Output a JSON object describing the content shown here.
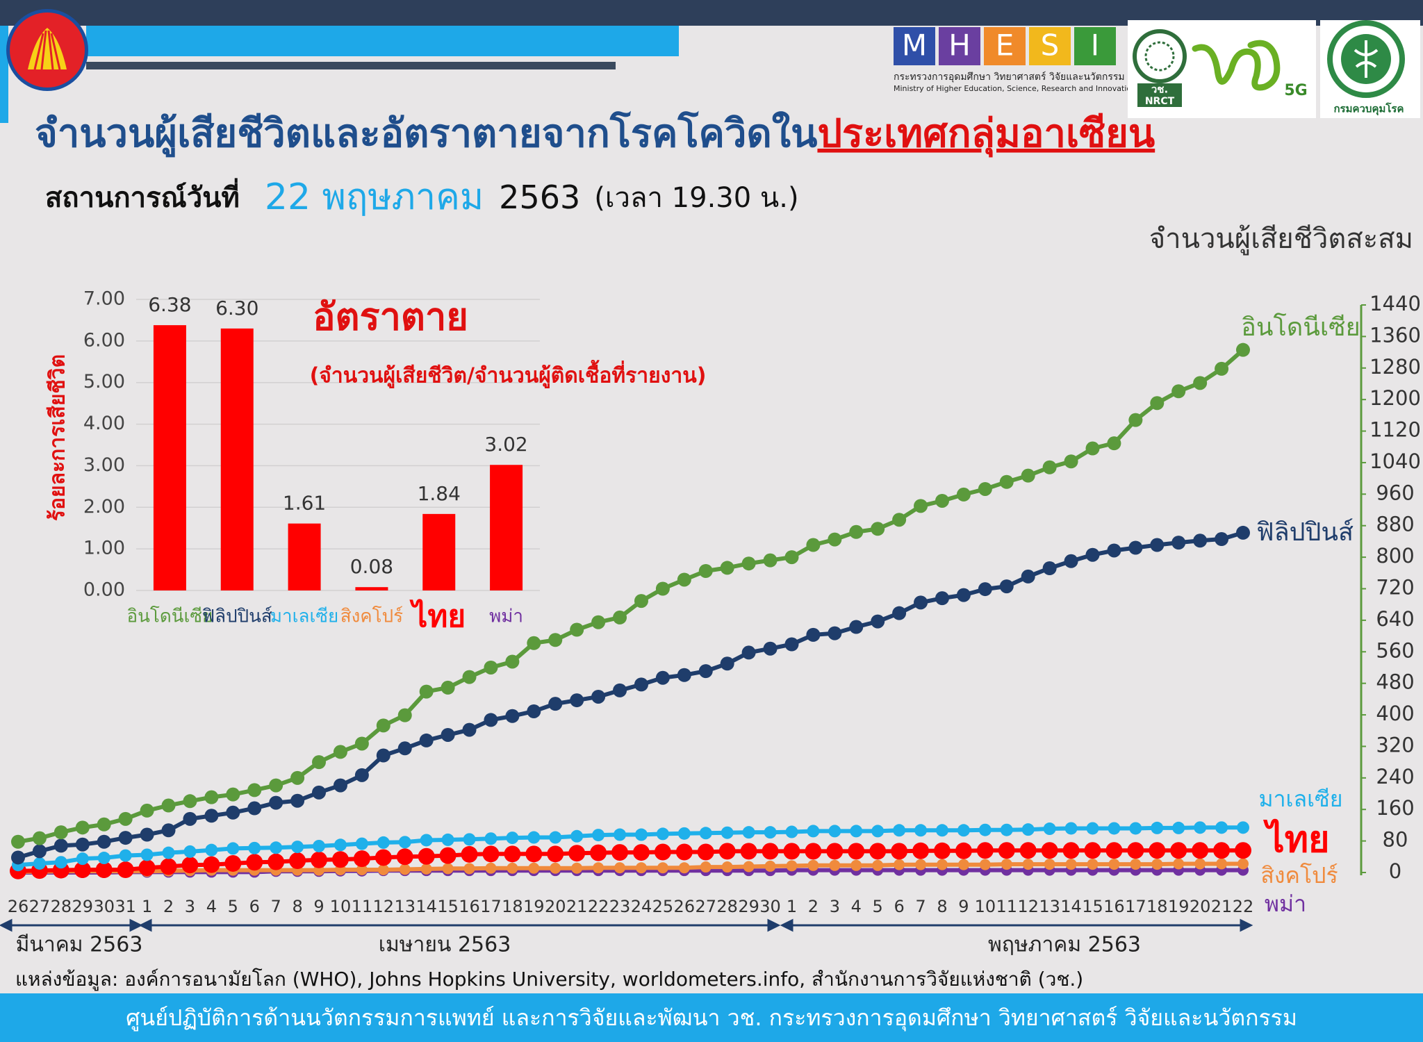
{
  "header": {
    "title_part1": "จำนวนผู้เสียชีวิตและอัตราตายจากโรคโควิดใน",
    "title_part2": "ประเทศกลุ่มอาเซียน",
    "situation_label": "สถานการณ์วันที่",
    "situation_date": "22 พฤษภาคม",
    "situation_year": "2563",
    "situation_time": "(เวลา 19.30 น.)"
  },
  "logos": {
    "mhesi_letters": [
      "M",
      "H",
      "E",
      "S",
      "I"
    ],
    "ministry_th": "กระทรวงการอุดมศึกษา วิทยาศาสตร์ วิจัยและนวัตกรรม",
    "ministry_en": "Ministry of Higher Education, Science, Research and Innovation",
    "nrct_th": "วช.",
    "nrct_en": "NRCT",
    "fiveg": "5G",
    "ddc": "กรมควบคุมโรค"
  },
  "chart_data": [
    {
      "type": "line",
      "y_axis_label": "จำนวนผู้เสียชีวิตสะสม",
      "y_axis_side": "right",
      "categories": [
        "26",
        "27",
        "28",
        "29",
        "30",
        "31",
        "1",
        "2",
        "3",
        "4",
        "5",
        "6",
        "7",
        "8",
        "9",
        "10",
        "11",
        "12",
        "13",
        "14",
        "15",
        "16",
        "17",
        "18",
        "19",
        "20",
        "21",
        "22",
        "23",
        "24",
        "25",
        "26",
        "27",
        "28",
        "29",
        "30",
        "1",
        "2",
        "3",
        "4",
        "5",
        "6",
        "7",
        "8",
        "9",
        "10",
        "11",
        "12",
        "13",
        "14",
        "15",
        "16",
        "17",
        "18",
        "19",
        "20",
        "21",
        "22"
      ],
      "month_labels": [
        "มีนาคม 2563",
        "เมษายน 2563",
        "พฤษภาคม 2563"
      ],
      "ylim": [
        0,
        1440
      ],
      "yticks": [
        0,
        80,
        160,
        240,
        320,
        400,
        480,
        560,
        640,
        720,
        800,
        880,
        960,
        1040,
        1120,
        1200,
        1280,
        1360,
        1440
      ],
      "series": [
        {
          "name": "อินโดนีเซีย",
          "color": "#5b9a3c",
          "values": [
            78,
            87,
            102,
            114,
            122,
            136,
            157,
            170,
            181,
            191,
            198,
            209,
            221,
            240,
            280,
            306,
            327,
            373,
            399,
            459,
            469,
            496,
            520,
            535,
            582,
            590,
            616,
            635,
            647,
            689,
            720,
            743,
            765,
            773,
            784,
            792,
            800,
            831,
            845,
            864,
            872,
            895,
            930,
            943,
            959,
            973,
            991,
            1007,
            1028,
            1043,
            1076,
            1089,
            1148,
            1191,
            1221,
            1242,
            1278,
            1326
          ]
        },
        {
          "name": "ฟิลิปปินส์",
          "color": "#1f3d6b",
          "values": [
            38,
            54,
            68,
            71,
            78,
            88,
            96,
            107,
            136,
            144,
            152,
            163,
            177,
            182,
            203,
            221,
            247,
            297,
            315,
            335,
            349,
            362,
            387,
            397,
            409,
            428,
            437,
            446,
            462,
            477,
            494,
            501,
            511,
            530,
            558,
            568,
            579,
            603,
            607,
            623,
            637,
            658,
            685,
            696,
            704,
            719,
            726,
            751,
            772,
            790,
            806,
            817,
            824,
            831,
            837,
            842,
            846,
            862
          ]
        },
        {
          "name": "มาเลเซีย",
          "color": "#1fb0ea",
          "values": [
            19,
            23,
            26,
            35,
            37,
            43,
            45,
            50,
            53,
            57,
            61,
            62,
            63,
            65,
            67,
            70,
            73,
            76,
            77,
            82,
            83,
            84,
            86,
            88,
            89,
            89,
            92,
            95,
            96,
            96,
            98,
            99,
            100,
            101,
            102,
            102,
            103,
            105,
            105,
            105,
            105,
            107,
            107,
            107,
            107,
            108,
            108,
            109,
            111,
            112,
            112,
            112,
            112,
            113,
            113,
            114,
            114,
            114
          ]
        },
        {
          "name": "ไทย",
          "color": "#ff0000",
          "values": [
            4,
            5,
            6,
            7,
            7,
            7,
            12,
            15,
            19,
            20,
            23,
            26,
            27,
            30,
            32,
            33,
            35,
            38,
            40,
            41,
            43,
            46,
            47,
            47,
            47,
            47,
            49,
            50,
            51,
            51,
            52,
            52,
            52,
            54,
            54,
            54,
            54,
            54,
            54,
            54,
            54,
            54,
            55,
            55,
            55,
            56,
            56,
            56,
            56,
            56,
            56,
            56,
            56,
            56,
            56,
            56,
            56,
            56
          ]
        },
        {
          "name": "สิงคโปร์",
          "color": "#f08a3c",
          "values": [
            2,
            2,
            3,
            3,
            3,
            3,
            3,
            4,
            5,
            6,
            6,
            6,
            6,
            6,
            6,
            7,
            7,
            7,
            8,
            9,
            10,
            10,
            11,
            11,
            11,
            11,
            11,
            12,
            12,
            12,
            12,
            12,
            14,
            14,
            15,
            16,
            17,
            18,
            18,
            18,
            18,
            20,
            20,
            20,
            20,
            20,
            21,
            21,
            21,
            21,
            21,
            21,
            21,
            21,
            22,
            22,
            22,
            22
          ]
        },
        {
          "name": "พม่า",
          "color": "#7030a0",
          "values": [
            0,
            0,
            0,
            0,
            0,
            1,
            1,
            1,
            1,
            1,
            1,
            1,
            3,
            3,
            3,
            4,
            4,
            5,
            5,
            5,
            5,
            5,
            5,
            5,
            5,
            5,
            5,
            5,
            5,
            5,
            5,
            5,
            5,
            5,
            5,
            5,
            6,
            6,
            6,
            6,
            6,
            6,
            6,
            6,
            6,
            6,
            6,
            6,
            6,
            6,
            6,
            6,
            6,
            6,
            6,
            6,
            6,
            6
          ]
        }
      ]
    },
    {
      "type": "bar",
      "title": "อัตราตาย",
      "subtitle": "(จำนวนผู้เสียชีวิต/จำนวนผู้ติดเชื้อที่รายงาน)",
      "y_axis_label": "ร้อยละการเสียชีวิต",
      "categories": [
        "อินโดนีเซีย",
        "ฟิลิปปินส์",
        "มาเลเซีย",
        "สิงคโปร์",
        "ไทย",
        "พม่า"
      ],
      "category_colors": [
        "#5b9a3c",
        "#1f3d6b",
        "#1fb0ea",
        "#f08a3c",
        "#ff0000",
        "#7030a0"
      ],
      "values": [
        6.38,
        6.3,
        1.61,
        0.08,
        1.84,
        3.02
      ],
      "value_labels": [
        "6.38",
        "6.30",
        "1.61",
        "0.08",
        "1.84",
        "3.02"
      ],
      "color": "#ff0000",
      "ylim": [
        0,
        7
      ],
      "yticks": [
        {
          "value": 0,
          "label": "0.00"
        },
        {
          "value": 1,
          "label": "1.00"
        },
        {
          "value": 2,
          "label": "2.00"
        },
        {
          "value": 3,
          "label": "3.00"
        },
        {
          "value": 4,
          "label": "4.00"
        },
        {
          "value": 5,
          "label": "5.00"
        },
        {
          "value": 6,
          "label": "6.00"
        },
        {
          "value": 7,
          "label": "7.00"
        }
      ],
      "grid": true
    }
  ],
  "source": "แหล่งข้อมูล: องค์การอนามัยโลก (WHO), Johns Hopkins University, worldometers.info, สำนักงานการวิจัยแห่งชาติ (วช.)",
  "footer": "ศูนย์ปฏิบัติการด้านนวัตกรรมการแพทย์ และการวิจัยและพัฒนา  วช.    กระทรวงการอุดมศึกษา วิทยาศาสตร์ วิจัยและนวัตกรรม"
}
